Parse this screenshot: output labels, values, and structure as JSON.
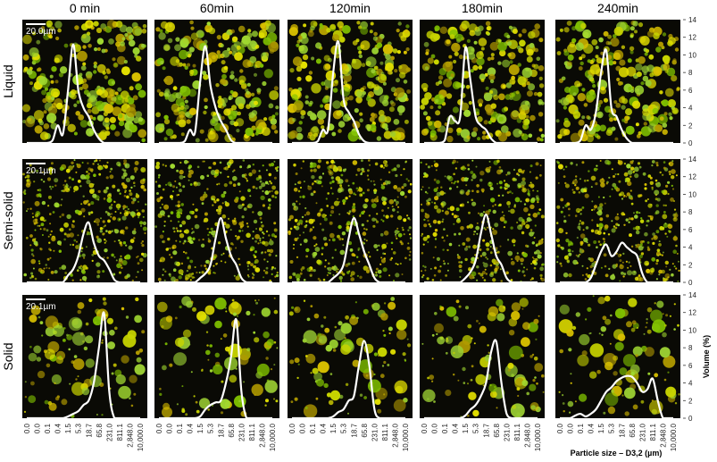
{
  "chart_data": {
    "type": "line",
    "column_titles": [
      "0 min",
      "60min",
      "120min",
      "180min",
      "240min"
    ],
    "row_labels": [
      "Liquid",
      "Semi-solid",
      "Solid"
    ],
    "scale_bars": [
      "20.0µm",
      "20.1µm",
      "20.1µm"
    ],
    "categories": [
      "0.0",
      null,
      "0.0",
      null,
      "0.1",
      null,
      "0.4",
      null,
      "1.5",
      null,
      "5.3",
      null,
      "18.7",
      null,
      "65.8",
      null,
      "231.0",
      null,
      "811.1",
      null,
      "2,848.0",
      null,
      "10,000.0"
    ],
    "ylabel": "Volume (%)",
    "xlabel": "Particle size – D3,2 (µm)",
    "ylim": [
      0,
      14
    ],
    "yticks": [
      0,
      2,
      4,
      6,
      8,
      10,
      12,
      14
    ],
    "color": "#ffffff",
    "panels": [
      [
        [
          0,
          0,
          0,
          0,
          0,
          0.3,
          2,
          1,
          6,
          11.2,
          6,
          4,
          3,
          1.5,
          0.5,
          0,
          0,
          0,
          0,
          0,
          0,
          0,
          0
        ],
        [
          0,
          0,
          0,
          0,
          0,
          0.2,
          1.5,
          1.2,
          7,
          11,
          6.5,
          4,
          2.5,
          1.5,
          0.3,
          0,
          0,
          0,
          0,
          0,
          0,
          0,
          0
        ],
        [
          0,
          0,
          0,
          0,
          0,
          0.2,
          1.5,
          1.5,
          8,
          11.5,
          5,
          3.5,
          2.5,
          1,
          0.2,
          0,
          0,
          0,
          0,
          0,
          0,
          0,
          0
        ],
        [
          0,
          0,
          0,
          0,
          0.3,
          3,
          2.5,
          3,
          10.8,
          7,
          3,
          2,
          1.5,
          0.5,
          0,
          0,
          0,
          0,
          0,
          0,
          0,
          0,
          0
        ],
        [
          0,
          0,
          0,
          0,
          0.3,
          2,
          1.5,
          3.5,
          8,
          10.5,
          4,
          3,
          1.5,
          0.5,
          0,
          0,
          0,
          0,
          0,
          0,
          0,
          0,
          0
        ]
      ],
      [
        [
          0,
          0,
          0,
          0,
          0,
          0,
          0,
          0,
          0.8,
          1.5,
          3,
          5.5,
          6.8,
          4.5,
          3,
          2.5,
          1.5,
          0.3,
          0,
          0,
          0,
          0,
          0
        ],
        [
          0,
          0,
          0,
          0,
          0,
          0,
          0,
          0,
          0.5,
          1,
          2,
          5,
          7.3,
          5,
          3,
          2,
          0.5,
          0,
          0,
          0,
          0,
          0,
          0
        ],
        [
          0,
          0,
          0,
          0,
          0,
          0,
          0,
          0,
          0.5,
          1,
          2,
          5,
          7.3,
          5.5,
          3.5,
          2,
          0.5,
          0,
          0,
          0,
          0,
          0,
          0
        ],
        [
          0,
          0,
          0,
          0,
          0,
          0,
          0,
          0,
          0.5,
          1.2,
          2.5,
          5.5,
          7.7,
          5.5,
          3,
          2,
          0.5,
          0,
          0,
          0,
          0,
          0,
          0
        ],
        [
          0,
          0,
          0,
          0,
          0,
          0,
          0.5,
          2,
          3.5,
          4.3,
          3,
          3.5,
          4.5,
          4,
          3.5,
          3,
          1,
          0,
          0,
          0,
          0,
          0,
          0
        ]
      ],
      [
        [
          0,
          0,
          0,
          0,
          0,
          0,
          0,
          0,
          0.2,
          0.5,
          0.8,
          1.5,
          2,
          4,
          8,
          11.9,
          3,
          0,
          0,
          0,
          0,
          0,
          0
        ],
        [
          0,
          0,
          0,
          0,
          0,
          0,
          0,
          0,
          0.2,
          1,
          1.5,
          1.8,
          2,
          4,
          7,
          11.2,
          3,
          0,
          0,
          0,
          0,
          0,
          0
        ],
        [
          0,
          0,
          0,
          0,
          0,
          0,
          0,
          0,
          0.2,
          0.7,
          1,
          2,
          2.5,
          6,
          8.8,
          6,
          1,
          0,
          0,
          0,
          0,
          0,
          0
        ],
        [
          0,
          0,
          0,
          0,
          0,
          0,
          0,
          0,
          0.3,
          1,
          1.5,
          2.5,
          4,
          7.5,
          8.7,
          4,
          0.5,
          0,
          0,
          0,
          0,
          0,
          0
        ],
        [
          0,
          0,
          0,
          0.3,
          0.5,
          0.2,
          0.5,
          1,
          2,
          3,
          3.5,
          4.2,
          4.6,
          4.8,
          4.7,
          4,
          3,
          3.3,
          4.5,
          2,
          0,
          0,
          0
        ]
      ]
    ]
  }
}
